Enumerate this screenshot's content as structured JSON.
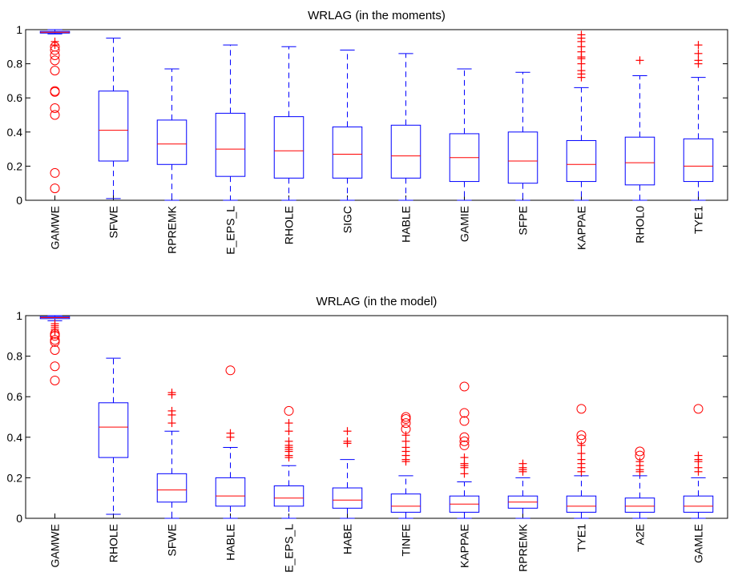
{
  "chart_data": [
    {
      "type": "boxplot",
      "title": "WRLAG (in the moments)",
      "ylim": [
        0,
        1
      ],
      "yticks": [
        "0",
        "0.2",
        "0.4",
        "0.6",
        "0.8",
        "1"
      ],
      "grid": false,
      "colors": {
        "box": "#0000ff",
        "median": "#ff0000",
        "outlier": "#ff0000"
      },
      "categories": [
        "GAMWE",
        "SFWE",
        "RPREMK",
        "E_EPS_L",
        "RHOLE",
        "SIGC",
        "HABLE",
        "GAMIE",
        "SFPE",
        "KAPPAE",
        "RHOL0",
        "TYE1"
      ],
      "boxes": [
        {
          "q1": 0.98,
          "median": 0.985,
          "q3": 0.99,
          "whisker_low": 0.975,
          "whisker_high": 1.0,
          "outliers": [
            {
              "y": 0.93,
              "m": "plus"
            },
            {
              "y": 0.91,
              "m": "plus"
            },
            {
              "y": 0.9,
              "m": "circle"
            },
            {
              "y": 0.88,
              "m": "circle"
            },
            {
              "y": 0.85,
              "m": "circle"
            },
            {
              "y": 0.82,
              "m": "circle"
            },
            {
              "y": 0.76,
              "m": "circle"
            },
            {
              "y": 0.64,
              "m": "circle"
            },
            {
              "y": 0.635,
              "m": "circle"
            },
            {
              "y": 0.54,
              "m": "circle"
            },
            {
              "y": 0.5,
              "m": "circle"
            },
            {
              "y": 0.16,
              "m": "circle"
            },
            {
              "y": 0.07,
              "m": "circle"
            }
          ]
        },
        {
          "q1": 0.23,
          "median": 0.41,
          "q3": 0.64,
          "whisker_low": 0.01,
          "whisker_high": 0.95,
          "outliers": []
        },
        {
          "q1": 0.21,
          "median": 0.33,
          "q3": 0.47,
          "whisker_low": 0.0,
          "whisker_high": 0.77,
          "outliers": []
        },
        {
          "q1": 0.14,
          "median": 0.3,
          "q3": 0.51,
          "whisker_low": 0.0,
          "whisker_high": 0.91,
          "outliers": []
        },
        {
          "q1": 0.13,
          "median": 0.29,
          "q3": 0.49,
          "whisker_low": 0.0,
          "whisker_high": 0.9,
          "outliers": []
        },
        {
          "q1": 0.13,
          "median": 0.27,
          "q3": 0.43,
          "whisker_low": 0.0,
          "whisker_high": 0.88,
          "outliers": []
        },
        {
          "q1": 0.13,
          "median": 0.26,
          "q3": 0.44,
          "whisker_low": 0.0,
          "whisker_high": 0.86,
          "outliers": []
        },
        {
          "q1": 0.11,
          "median": 0.25,
          "q3": 0.39,
          "whisker_low": 0.0,
          "whisker_high": 0.77,
          "outliers": []
        },
        {
          "q1": 0.1,
          "median": 0.23,
          "q3": 0.4,
          "whisker_low": 0.0,
          "whisker_high": 0.75,
          "outliers": []
        },
        {
          "q1": 0.11,
          "median": 0.21,
          "q3": 0.35,
          "whisker_low": 0.0,
          "whisker_high": 0.66,
          "outliers": [
            {
              "y": 0.97,
              "m": "plus"
            },
            {
              "y": 0.95,
              "m": "plus"
            },
            {
              "y": 0.93,
              "m": "plus"
            },
            {
              "y": 0.9,
              "m": "plus"
            },
            {
              "y": 0.87,
              "m": "plus"
            },
            {
              "y": 0.84,
              "m": "plus"
            },
            {
              "y": 0.83,
              "m": "plus"
            },
            {
              "y": 0.8,
              "m": "plus"
            },
            {
              "y": 0.76,
              "m": "plus"
            },
            {
              "y": 0.74,
              "m": "plus"
            },
            {
              "y": 0.72,
              "m": "plus"
            }
          ]
        },
        {
          "q1": 0.09,
          "median": 0.22,
          "q3": 0.37,
          "whisker_low": 0.0,
          "whisker_high": 0.73,
          "outliers": [
            {
              "y": 0.82,
              "m": "plus"
            }
          ]
        },
        {
          "q1": 0.11,
          "median": 0.2,
          "q3": 0.36,
          "whisker_low": 0.0,
          "whisker_high": 0.72,
          "outliers": [
            {
              "y": 0.91,
              "m": "plus"
            },
            {
              "y": 0.86,
              "m": "plus"
            },
            {
              "y": 0.82,
              "m": "plus"
            },
            {
              "y": 0.8,
              "m": "plus"
            }
          ]
        }
      ]
    },
    {
      "type": "boxplot",
      "title": "WRLAG (in the model)",
      "ylim": [
        0,
        1
      ],
      "yticks": [
        "0",
        "0.2",
        "0.4",
        "0.6",
        "0.8",
        "1"
      ],
      "grid": false,
      "colors": {
        "box": "#0000ff",
        "median": "#ff0000",
        "outlier": "#ff0000"
      },
      "categories": [
        "GAMWE",
        "RHOLE",
        "SFWE",
        "HABLE",
        "E_EPS_L",
        "HABE",
        "TINFE",
        "KAPPAE",
        "RPREMK",
        "TYE1",
        "A2E",
        "GAMLE"
      ],
      "boxes": [
        {
          "q1": 0.985,
          "median": 0.99,
          "q3": 0.995,
          "whisker_low": 0.975,
          "whisker_high": 1.0,
          "outliers": [
            {
              "y": 0.96,
              "m": "plus"
            },
            {
              "y": 0.95,
              "m": "plus"
            },
            {
              "y": 0.94,
              "m": "plus"
            },
            {
              "y": 0.93,
              "m": "plus"
            },
            {
              "y": 0.92,
              "m": "plus"
            },
            {
              "y": 0.91,
              "m": "circle"
            },
            {
              "y": 0.9,
              "m": "circle"
            },
            {
              "y": 0.88,
              "m": "circle"
            },
            {
              "y": 0.87,
              "m": "circle"
            },
            {
              "y": 0.83,
              "m": "circle"
            },
            {
              "y": 0.75,
              "m": "circle"
            },
            {
              "y": 0.68,
              "m": "circle"
            }
          ]
        },
        {
          "q1": 0.3,
          "median": 0.45,
          "q3": 0.57,
          "whisker_low": 0.02,
          "whisker_high": 0.79,
          "outliers": []
        },
        {
          "q1": 0.08,
          "median": 0.14,
          "q3": 0.22,
          "whisker_low": 0.0,
          "whisker_high": 0.43,
          "outliers": [
            {
              "y": 0.62,
              "m": "plus"
            },
            {
              "y": 0.61,
              "m": "plus"
            },
            {
              "y": 0.53,
              "m": "plus"
            },
            {
              "y": 0.51,
              "m": "plus"
            },
            {
              "y": 0.47,
              "m": "plus"
            }
          ]
        },
        {
          "q1": 0.06,
          "median": 0.11,
          "q3": 0.2,
          "whisker_low": 0.0,
          "whisker_high": 0.35,
          "outliers": [
            {
              "y": 0.73,
              "m": "circle"
            },
            {
              "y": 0.42,
              "m": "plus"
            },
            {
              "y": 0.4,
              "m": "plus"
            }
          ]
        },
        {
          "q1": 0.06,
          "median": 0.1,
          "q3": 0.16,
          "whisker_low": 0.0,
          "whisker_high": 0.26,
          "outliers": [
            {
              "y": 0.53,
              "m": "circle"
            },
            {
              "y": 0.47,
              "m": "plus"
            },
            {
              "y": 0.43,
              "m": "plus"
            },
            {
              "y": 0.38,
              "m": "plus"
            },
            {
              "y": 0.36,
              "m": "plus"
            },
            {
              "y": 0.35,
              "m": "plus"
            },
            {
              "y": 0.34,
              "m": "plus"
            },
            {
              "y": 0.33,
              "m": "plus"
            },
            {
              "y": 0.31,
              "m": "plus"
            },
            {
              "y": 0.3,
              "m": "plus"
            }
          ]
        },
        {
          "q1": 0.05,
          "median": 0.09,
          "q3": 0.15,
          "whisker_low": 0.0,
          "whisker_high": 0.29,
          "outliers": [
            {
              "y": 0.43,
              "m": "plus"
            },
            {
              "y": 0.38,
              "m": "plus"
            },
            {
              "y": 0.37,
              "m": "plus"
            }
          ]
        },
        {
          "q1": 0.03,
          "median": 0.06,
          "q3": 0.12,
          "whisker_low": 0.0,
          "whisker_high": 0.21,
          "outliers": [
            {
              "y": 0.5,
              "m": "circle"
            },
            {
              "y": 0.49,
              "m": "circle"
            },
            {
              "y": 0.47,
              "m": "circle"
            },
            {
              "y": 0.44,
              "m": "circle"
            },
            {
              "y": 0.41,
              "m": "plus"
            },
            {
              "y": 0.38,
              "m": "plus"
            },
            {
              "y": 0.35,
              "m": "plus"
            },
            {
              "y": 0.33,
              "m": "plus"
            },
            {
              "y": 0.31,
              "m": "plus"
            },
            {
              "y": 0.29,
              "m": "plus"
            },
            {
              "y": 0.28,
              "m": "plus"
            }
          ]
        },
        {
          "q1": 0.03,
          "median": 0.07,
          "q3": 0.11,
          "whisker_low": 0.0,
          "whisker_high": 0.18,
          "outliers": [
            {
              "y": 0.65,
              "m": "circle"
            },
            {
              "y": 0.52,
              "m": "circle"
            },
            {
              "y": 0.48,
              "m": "circle"
            },
            {
              "y": 0.4,
              "m": "circle"
            },
            {
              "y": 0.38,
              "m": "circle"
            },
            {
              "y": 0.36,
              "m": "circle"
            },
            {
              "y": 0.3,
              "m": "plus"
            },
            {
              "y": 0.27,
              "m": "plus"
            },
            {
              "y": 0.26,
              "m": "plus"
            },
            {
              "y": 0.25,
              "m": "plus"
            },
            {
              "y": 0.22,
              "m": "plus"
            }
          ]
        },
        {
          "q1": 0.05,
          "median": 0.08,
          "q3": 0.11,
          "whisker_low": 0.0,
          "whisker_high": 0.2,
          "outliers": [
            {
              "y": 0.27,
              "m": "plus"
            },
            {
              "y": 0.25,
              "m": "plus"
            },
            {
              "y": 0.24,
              "m": "plus"
            },
            {
              "y": 0.23,
              "m": "plus"
            }
          ]
        },
        {
          "q1": 0.03,
          "median": 0.06,
          "q3": 0.11,
          "whisker_low": 0.0,
          "whisker_high": 0.21,
          "outliers": [
            {
              "y": 0.54,
              "m": "circle"
            },
            {
              "y": 0.41,
              "m": "circle"
            },
            {
              "y": 0.39,
              "m": "circle"
            },
            {
              "y": 0.36,
              "m": "plus"
            },
            {
              "y": 0.32,
              "m": "plus"
            },
            {
              "y": 0.29,
              "m": "plus"
            },
            {
              "y": 0.27,
              "m": "plus"
            },
            {
              "y": 0.25,
              "m": "plus"
            },
            {
              "y": 0.23,
              "m": "plus"
            }
          ]
        },
        {
          "q1": 0.03,
          "median": 0.06,
          "q3": 0.1,
          "whisker_low": 0.0,
          "whisker_high": 0.21,
          "outliers": [
            {
              "y": 0.33,
              "m": "circle"
            },
            {
              "y": 0.31,
              "m": "circle"
            },
            {
              "y": 0.28,
              "m": "plus"
            },
            {
              "y": 0.26,
              "m": "plus"
            },
            {
              "y": 0.24,
              "m": "plus"
            },
            {
              "y": 0.23,
              "m": "plus"
            }
          ]
        },
        {
          "q1": 0.03,
          "median": 0.06,
          "q3": 0.11,
          "whisker_low": 0.0,
          "whisker_high": 0.2,
          "outliers": [
            {
              "y": 0.54,
              "m": "circle"
            },
            {
              "y": 0.31,
              "m": "plus"
            },
            {
              "y": 0.29,
              "m": "plus"
            },
            {
              "y": 0.28,
              "m": "plus"
            },
            {
              "y": 0.25,
              "m": "plus"
            },
            {
              "y": 0.23,
              "m": "plus"
            }
          ]
        }
      ]
    }
  ]
}
